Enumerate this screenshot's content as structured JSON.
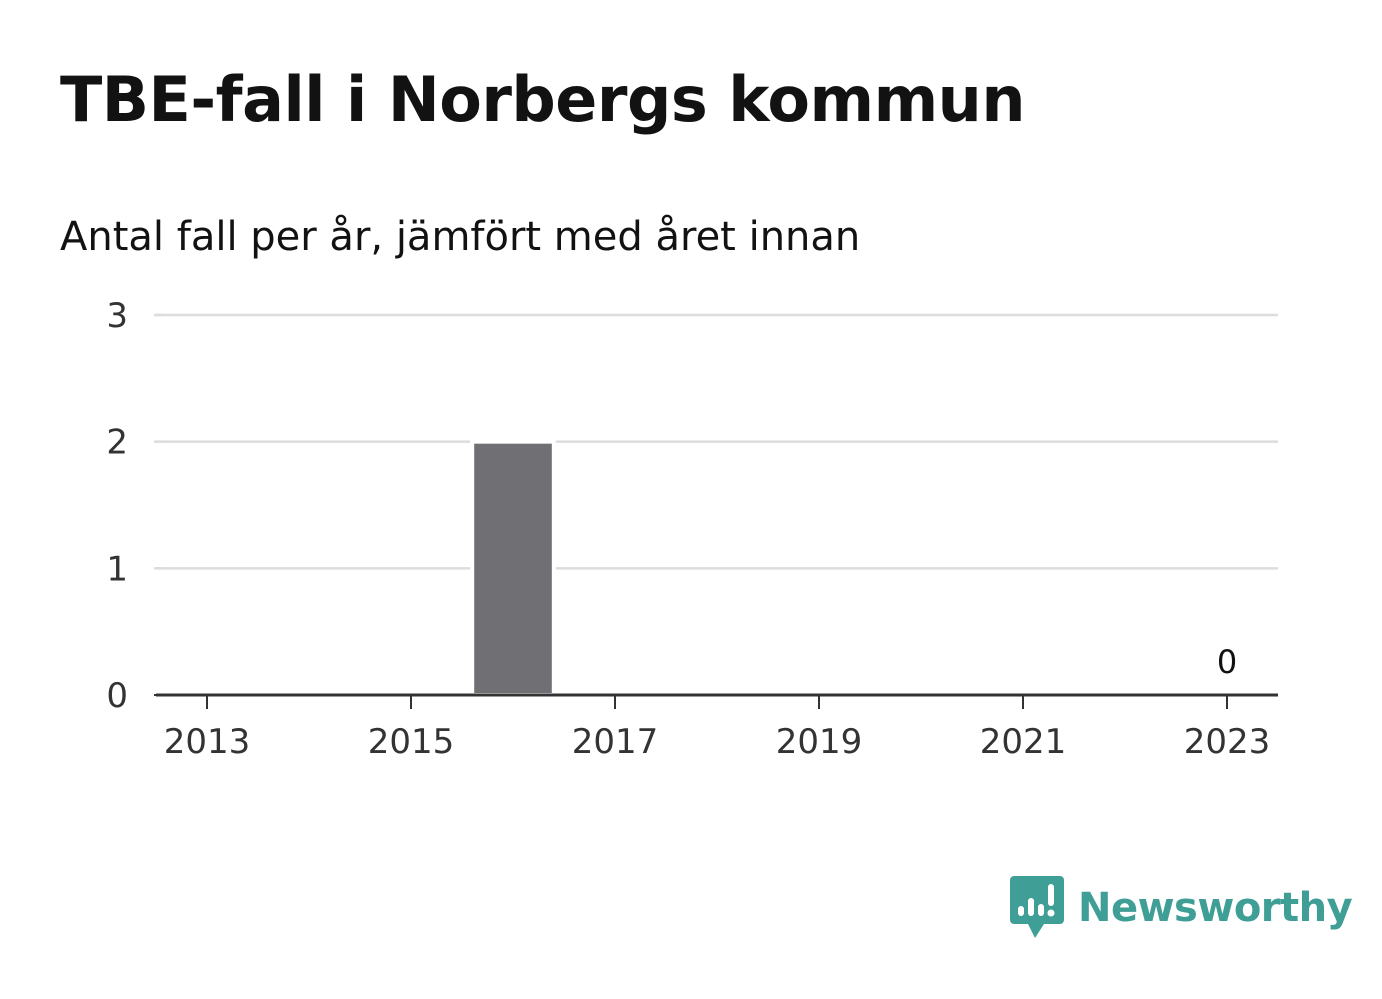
{
  "header": {
    "title": "TBE-fall i Norbergs kommun",
    "subtitle": "Antal fall per år, jämfört med året innan"
  },
  "brand": {
    "name": "Newsworthy",
    "icon": "newsworthy-logo-icon",
    "color": "#3f9e95"
  },
  "chart_data": {
    "type": "bar",
    "x": [
      2013,
      2014,
      2015,
      2016,
      2017,
      2018,
      2019,
      2020,
      2021,
      2022,
      2023
    ],
    "values": [
      0,
      0,
      0,
      2,
      0,
      0,
      0,
      0,
      0,
      0,
      0
    ],
    "x_ticks": [
      "2013",
      "2015",
      "2017",
      "2019",
      "2021",
      "2023"
    ],
    "y_ticks": [
      "0",
      "1",
      "2",
      "3"
    ],
    "ylim": [
      0,
      3
    ],
    "xlabel": "",
    "ylabel": "",
    "grid": true,
    "bar_color": "#707074",
    "grid_color": "#dddddd",
    "axis_color": "#333333",
    "annotations": [
      {
        "x": 2023,
        "text": "0"
      }
    ]
  }
}
